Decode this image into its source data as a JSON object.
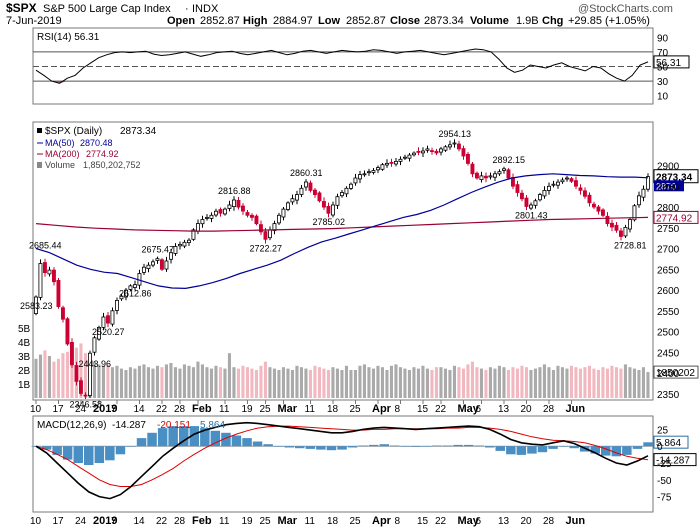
{
  "header": {
    "symbol": "$SPX",
    "name": "S&P 500 Large Cap Index",
    "exchange": "INDX",
    "date": "7-Jun-2019",
    "open_label": "Open",
    "open": "2852.87",
    "high_label": "High",
    "high": "2884.97",
    "low_label": "Low",
    "low": "2852.87",
    "close_label": "Close",
    "close": "2873.34",
    "volume_label": "Volume",
    "volume": "1.9B",
    "chg_label": "Chg",
    "chg": "+29.85 (+1.05%)",
    "credit": "@StockCharts.com"
  },
  "colors": {
    "up": "#000000",
    "down": "#cc0033",
    "ma50": "#000099",
    "ma200": "#990033",
    "vol_up": "#aaaaaa",
    "vol_down": "#f2b8c0",
    "rsi_fill": "#cc0033",
    "macd_signal": "#dd0000",
    "hist": "#4a8fc4"
  },
  "chart_data": [
    {
      "type": "line",
      "title": "RSI(14) 56.31",
      "series": [
        {
          "name": "RSI(14)",
          "values": [
            45,
            38,
            30,
            27,
            34,
            38,
            48,
            55,
            62,
            66,
            69,
            70,
            69,
            70,
            71,
            67,
            65,
            66,
            68,
            70,
            67,
            64,
            66,
            69,
            70,
            71,
            68,
            66,
            68,
            70,
            72,
            69,
            66,
            68,
            71,
            72,
            70,
            68,
            70,
            72,
            71,
            70,
            71,
            73,
            72,
            70,
            68,
            70,
            71,
            72,
            70,
            68,
            66,
            68,
            70,
            72,
            74,
            73,
            70,
            60,
            48,
            42,
            45,
            52,
            50,
            48,
            52,
            55,
            50,
            47,
            44,
            50,
            48,
            40,
            34,
            30,
            38,
            52,
            56.31
          ]
        }
      ],
      "ylim": [
        0,
        100
      ],
      "yticks": [
        90,
        70,
        50,
        30,
        10
      ],
      "levels": [
        70,
        50,
        30
      ],
      "last_value": "56.31"
    },
    {
      "type": "candlestick",
      "legend": [
        {
          "name": "$SPX (Daily)",
          "value": "2873.34"
        },
        {
          "name": "MA(50)",
          "value": "2870.48"
        },
        {
          "name": "MA(200)",
          "value": "2774.92"
        },
        {
          "name": "Volume",
          "value": "1,850,202,752"
        }
      ],
      "closes": [
        2583.23,
        2664,
        2642,
        2648,
        2620,
        2560,
        2530,
        2470,
        2420,
        2380,
        2351,
        2346.58,
        2448,
        2485,
        2510,
        2535,
        2520.27,
        2550,
        2575,
        2585,
        2600,
        2610,
        2612.86,
        2640,
        2655,
        2660,
        2668,
        2675.47,
        2650,
        2670,
        2690,
        2705,
        2710,
        2715,
        2720,
        2745,
        2760,
        2770,
        2775,
        2780,
        2790,
        2785,
        2795,
        2805,
        2816.88,
        2800,
        2790,
        2780,
        2775,
        2760,
        2740,
        2722.27,
        2745,
        2760,
        2780,
        2795,
        2810,
        2820,
        2830,
        2845,
        2860.31,
        2840,
        2830,
        2815,
        2800,
        2785.02,
        2805,
        2825,
        2835,
        2845,
        2855,
        2870,
        2878,
        2880,
        2885,
        2888,
        2895,
        2902,
        2905,
        2907,
        2910,
        2915,
        2920,
        2925,
        2930,
        2932,
        2935,
        2940,
        2935,
        2930,
        2940,
        2945,
        2950,
        2954.13,
        2940,
        2923,
        2905,
        2880,
        2870,
        2875,
        2870,
        2875,
        2880,
        2885,
        2892.15,
        2870,
        2850,
        2835,
        2820,
        2801.43,
        2805,
        2815,
        2830,
        2840,
        2850,
        2855,
        2860,
        2865,
        2870,
        2862,
        2850,
        2840,
        2826,
        2810,
        2800,
        2790,
        2780,
        2760,
        2752,
        2744,
        2728.81,
        2751,
        2770,
        2803,
        2827,
        2843,
        2873.34
      ],
      "ma50": [
        2700,
        2690,
        2675,
        2660,
        2650,
        2643,
        2640,
        2630,
        2620,
        2610,
        2605,
        2604,
        2610,
        2618,
        2628,
        2640,
        2650,
        2660,
        2672,
        2688,
        2703,
        2716,
        2725,
        2735,
        2745,
        2755,
        2765,
        2775,
        2782,
        2792,
        2805,
        2820,
        2835,
        2848,
        2860,
        2870,
        2875,
        2878,
        2880,
        2878,
        2876,
        2875,
        2873,
        2872,
        2872,
        2870.48
      ],
      "ma200": [
        2760,
        2756,
        2752,
        2749,
        2747,
        2745,
        2744,
        2743,
        2742,
        2742,
        2743,
        2744,
        2745,
        2746,
        2747,
        2748,
        2750,
        2752,
        2754,
        2756,
        2758,
        2760,
        2762,
        2764,
        2766,
        2768,
        2770,
        2771,
        2772,
        2773,
        2774,
        2774.92
      ],
      "volume_billion": [
        2.8,
        3.1,
        3.4,
        3.0,
        2.6,
        2.8,
        3.2,
        3.3,
        3.5,
        3.6,
        3.9,
        3.2,
        2.8,
        2.6,
        2.4,
        2.3,
        2.4,
        2.2,
        2.3,
        2.1,
        2.0,
        2.2,
        2.1,
        2.3,
        2.4,
        2.2,
        2.1,
        2.3,
        2.2,
        2.4,
        2.5,
        2.2,
        2.1,
        2.4,
        2.3,
        2.2,
        2.6,
        2.4,
        2.2,
        2.1,
        2.3,
        2.2,
        2.1,
        3.2,
        2.2,
        2.1,
        2.3,
        2.2,
        2.1,
        2.0,
        2.3,
        2.6,
        2.2,
        2.1,
        2.0,
        2.2,
        2.1,
        2.0,
        2.3,
        2.2,
        2.1,
        2.0,
        2.3,
        2.2,
        2.1,
        2.0,
        2.2,
        2.1,
        2.0,
        2.3,
        2.0,
        2.0,
        2.3,
        2.4,
        2.2,
        2.1,
        2.3,
        2.2,
        2.0,
        2.3,
        2.4,
        2.2,
        2.1,
        2.0,
        2.2,
        2.1,
        2.3,
        2.1,
        2.0,
        2.2,
        2.2,
        2.1,
        2.0,
        2.3,
        2.2,
        2.1,
        2.4,
        2.6,
        2.2,
        2.1,
        2.0,
        2.2,
        2.1,
        2.3,
        2.2,
        2.0,
        2.2,
        2.1,
        2.3,
        2.2,
        2.0,
        2.1,
        2.2,
        2.4,
        2.2,
        2.0,
        2.3,
        2.2,
        2.1,
        2.3,
        2.2,
        2.1,
        2.2,
        2.3,
        2.1,
        2.0,
        2.2,
        2.1,
        2.3,
        2.2,
        2.1,
        2.4,
        2.2,
        2.1,
        2.0,
        2.2,
        1.85
      ],
      "ylim": [
        2340,
        3000
      ],
      "yticks": [
        2900,
        2850,
        2800,
        2750,
        2700,
        2650,
        2600,
        2550,
        2500,
        2450,
        2400,
        2350
      ],
      "volume_ticks": [
        "5B",
        "4B",
        "3B",
        "2B",
        "1B"
      ],
      "annotations": [
        "2685.44",
        "2583.23",
        "2520.27",
        "2443.96",
        "2346.58",
        "2675.47",
        "2612.86",
        "2816.88",
        "2722.27",
        "2860.31",
        "2785.02",
        "2954.13",
        "2892.15",
        "2801.43",
        "2728.81"
      ],
      "right_labels": {
        "close": "2873.34",
        "ma50": "2870",
        "ma200": "2774.92",
        "volume": "1850202"
      }
    },
    {
      "type": "line",
      "title": "MACD(12,26,9)",
      "values_text": {
        "macd": "-14.287",
        "signal": "-20.151",
        "hist": "5.864"
      },
      "macd": [
        0,
        -10,
        -25,
        -40,
        -55,
        -68,
        -75,
        -78,
        -72,
        -60,
        -45,
        -30,
        -15,
        -3,
        8,
        18,
        24,
        28,
        32,
        34,
        35,
        34,
        32,
        30,
        28,
        26,
        24,
        22,
        20,
        20,
        22,
        25,
        27,
        28,
        27,
        26,
        25,
        26,
        27,
        28,
        29,
        30,
        29,
        25,
        18,
        10,
        5,
        3,
        2,
        5,
        8,
        4,
        -3,
        -10,
        -18,
        -25,
        -28,
        -22,
        -14.287
      ],
      "signal": [
        0,
        -5,
        -12,
        -20,
        -30,
        -40,
        -50,
        -57,
        -60,
        -60,
        -57,
        -50,
        -42,
        -33,
        -22,
        -12,
        -3,
        5,
        12,
        18,
        23,
        27,
        29,
        30,
        30,
        29,
        28,
        27,
        26,
        25,
        24,
        24,
        25,
        25,
        26,
        26,
        26,
        26,
        26,
        27,
        27,
        28,
        28,
        27,
        25,
        22,
        18,
        14,
        11,
        9,
        8,
        7,
        5,
        1,
        -4,
        -10,
        -15,
        -18,
        -20.151
      ],
      "ylim": [
        -95,
        42
      ],
      "yticks": [
        "25",
        "0",
        "-25",
        "-50",
        "-75"
      ],
      "right_labels": {
        "hist": "5.864",
        "macd": "-14.287"
      }
    }
  ],
  "x_axis": {
    "labels": [
      {
        "text": "10",
        "i": 0
      },
      {
        "text": "17",
        "i": 5
      },
      {
        "text": "24",
        "i": 10
      },
      {
        "text": "2019",
        "i": 14
      },
      {
        "text": "7",
        "i": 18
      },
      {
        "text": "14",
        "i": 23
      },
      {
        "text": "22",
        "i": 28
      },
      {
        "text": "28",
        "i": 32
      },
      {
        "text": "Feb",
        "i": 36
      },
      {
        "text": "11",
        "i": 42
      },
      {
        "text": "19",
        "i": 47
      },
      {
        "text": "25",
        "i": 51
      },
      {
        "text": "Mar",
        "i": 55
      },
      {
        "text": "11",
        "i": 61
      },
      {
        "text": "18",
        "i": 66
      },
      {
        "text": "25",
        "i": 71
      },
      {
        "text": "Apr",
        "i": 76
      },
      {
        "text": "8",
        "i": 81
      },
      {
        "text": "15",
        "i": 86
      },
      {
        "text": "22",
        "i": 90
      },
      {
        "text": "May",
        "i": 95
      },
      {
        "text": "6",
        "i": 99
      },
      {
        "text": "13",
        "i": 104
      },
      {
        "text": "20",
        "i": 109
      },
      {
        "text": "28",
        "i": 114
      },
      {
        "text": "Jun",
        "i": 119
      }
    ]
  }
}
